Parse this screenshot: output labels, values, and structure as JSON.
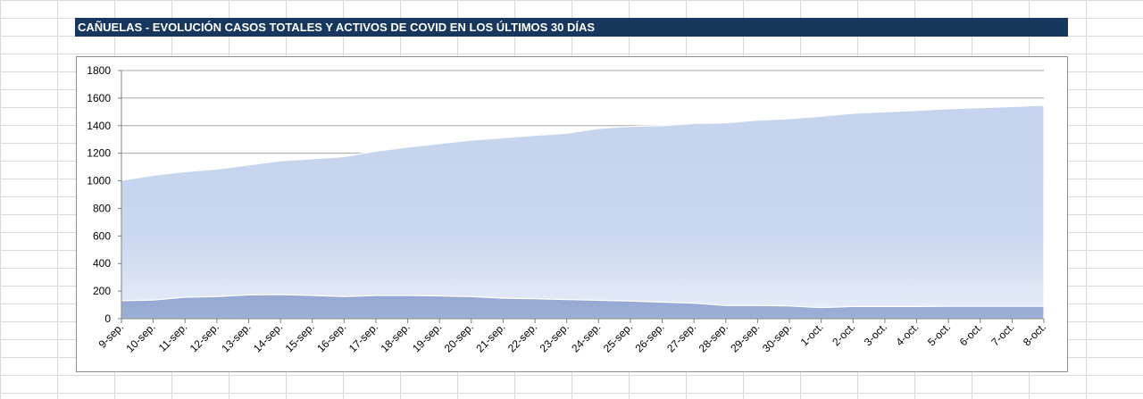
{
  "header": {
    "title": "CAÑUELAS - EVOLUCIÓN CASOS TOTALES Y ACTIVOS DE COVID EN LOS ÚLTIMOS 30 DÍAS"
  },
  "chart_data": {
    "type": "area",
    "title": "CAÑUELAS - EVOLUCIÓN CASOS TOTALES Y ACTIVOS DE COVID EN LOS ÚLTIMOS 30 DÍAS",
    "xlabel": "",
    "ylabel": "",
    "ylim": [
      0,
      1800
    ],
    "yticks": [
      0,
      200,
      400,
      600,
      800,
      1000,
      1200,
      1400,
      1600,
      1800
    ],
    "grid": true,
    "legend": "none",
    "categories": [
      "9-sep.",
      "10-sep.",
      "11-sep.",
      "12-sep.",
      "13-sep.",
      "14-sep.",
      "15-sep.",
      "16-sep.",
      "17-sep.",
      "18-sep.",
      "19-sep.",
      "20-sep.",
      "21-sep.",
      "22-sep.",
      "23-sep.",
      "24-sep.",
      "25-sep.",
      "26-sep.",
      "27-sep.",
      "28-sep.",
      "29-sep.",
      "30-sep.",
      "1-oct.",
      "2-oct.",
      "3-oct.",
      "4-oct.",
      "5-oct.",
      "6-oct.",
      "7-oct.",
      "8-oct."
    ],
    "series": [
      {
        "values": [
          1003,
          1040,
          1066,
          1085,
          1115,
          1145,
          1160,
          1175,
          1215,
          1245,
          1270,
          1295,
          1312,
          1330,
          1345,
          1380,
          1395,
          1400,
          1415,
          1420,
          1440,
          1450,
          1468,
          1490,
          1500,
          1510,
          1522,
          1530,
          1538,
          1548
        ],
        "color": "#c5d3ee"
      },
      {
        "values": [
          130,
          135,
          155,
          160,
          172,
          175,
          168,
          160,
          168,
          168,
          165,
          160,
          148,
          145,
          138,
          133,
          128,
          120,
          112,
          95,
          95,
          92,
          80,
          88,
          88,
          88,
          90,
          90,
          90,
          90
        ],
        "color": "#95a8d2"
      }
    ]
  }
}
